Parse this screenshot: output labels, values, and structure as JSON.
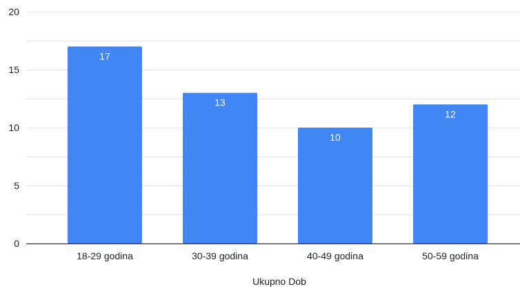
{
  "chart_data": {
    "type": "bar",
    "title": "",
    "xlabel": "Ukupno Dob",
    "ylabel": "",
    "categories": [
      "18-29 godina",
      "30-39 godina",
      "40-49 godina",
      "50-59 godina"
    ],
    "values": [
      17,
      13,
      10,
      12
    ],
    "ylim": [
      0,
      20
    ],
    "yticks": [
      0,
      5,
      10,
      15,
      20
    ],
    "grid": true,
    "legend": "none",
    "data_labels": true
  },
  "colors": {
    "bar": "#4285f4",
    "gridline": "#e3e3e3",
    "axis": "#333333",
    "label_text": "#ffffff",
    "tick_text": "#222222"
  }
}
